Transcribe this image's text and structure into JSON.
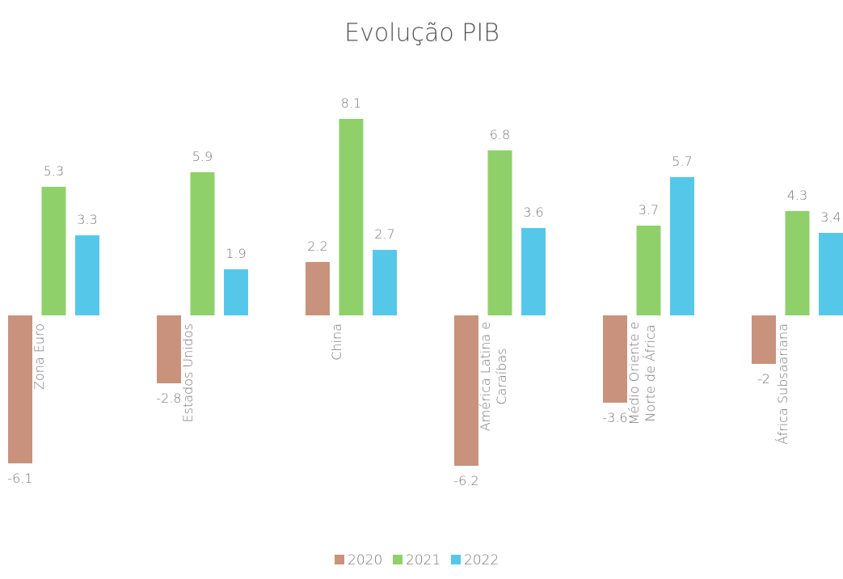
{
  "chart_data": {
    "type": "bar",
    "title": "Evolução PIB",
    "categories": [
      "Zona Euro",
      "Estados Unidos",
      "China",
      "América Latina e Caraíbas",
      "Médio Oriente e Norte de África",
      "África Subsaariana"
    ],
    "series": [
      {
        "name": "2020",
        "color": "#c9927c",
        "values": [
          -6.1,
          -2.8,
          2.2,
          -6.2,
          -3.6,
          -2
        ]
      },
      {
        "name": "2021",
        "color": "#8fd06b",
        "values": [
          5.3,
          5.9,
          8.1,
          6.8,
          3.7,
          4.3
        ]
      },
      {
        "name": "2022",
        "color": "#55c8ea",
        "values": [
          3.3,
          1.9,
          2.7,
          3.6,
          5.7,
          3.4
        ]
      }
    ],
    "ylim": [
      -7,
      9
    ],
    "legend": "bottom"
  }
}
